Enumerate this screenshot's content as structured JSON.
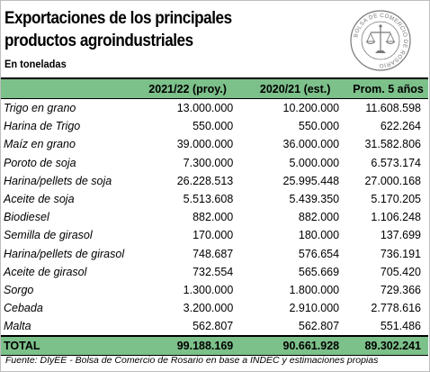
{
  "title_line1": "Exportaciones de los principales",
  "title_line2": "productos agroindustriales",
  "subtitle": "En toneladas",
  "logo_text": "BOLSA DE COMERCIO DE ROSARIO",
  "headers": [
    "",
    "2021/22 (proy.)",
    "2020/21 (est.)",
    "Prom. 5 años"
  ],
  "rows": [
    [
      "Trigo en grano",
      "13.000.000",
      "10.200.000",
      "11.608.598"
    ],
    [
      "Harina de Trigo",
      "550.000",
      "550.000",
      "622.264"
    ],
    [
      "Maíz en grano",
      "39.000.000",
      "36.000.000",
      "31.582.806"
    ],
    [
      "Poroto de soja",
      "7.300.000",
      "5.000.000",
      "6.573.174"
    ],
    [
      "Harina/pellets de soja",
      "26.228.513",
      "25.995.448",
      "27.000.168"
    ],
    [
      "Aceite de soja",
      "5.513.608",
      "5.439.350",
      "5.170.205"
    ],
    [
      "Biodiesel",
      "882.000",
      "882.000",
      "1.106.248"
    ],
    [
      "Semilla de girasol",
      "170.000",
      "180.000",
      "137.699"
    ],
    [
      "Harina/pellets de girasol",
      "748.687",
      "576.654",
      "736.191"
    ],
    [
      "Aceite de girasol",
      "732.554",
      "565.669",
      "705.420"
    ],
    [
      "Sorgo",
      "1.300.000",
      "1.800.000",
      "729.366"
    ],
    [
      "Cebada",
      "3.200.000",
      "2.910.000",
      "2.778.616"
    ],
    [
      "Malta",
      "562.807",
      "562.807",
      "551.486"
    ]
  ],
  "total": [
    "TOTAL",
    "99.188.169",
    "90.661.928",
    "89.302.241"
  ],
  "source": "Fuente: DIyEE - Bolsa de Comercio de Rosario en base a INDEC y estimaciones propias",
  "colors": {
    "header_green": "#7cc08a"
  }
}
